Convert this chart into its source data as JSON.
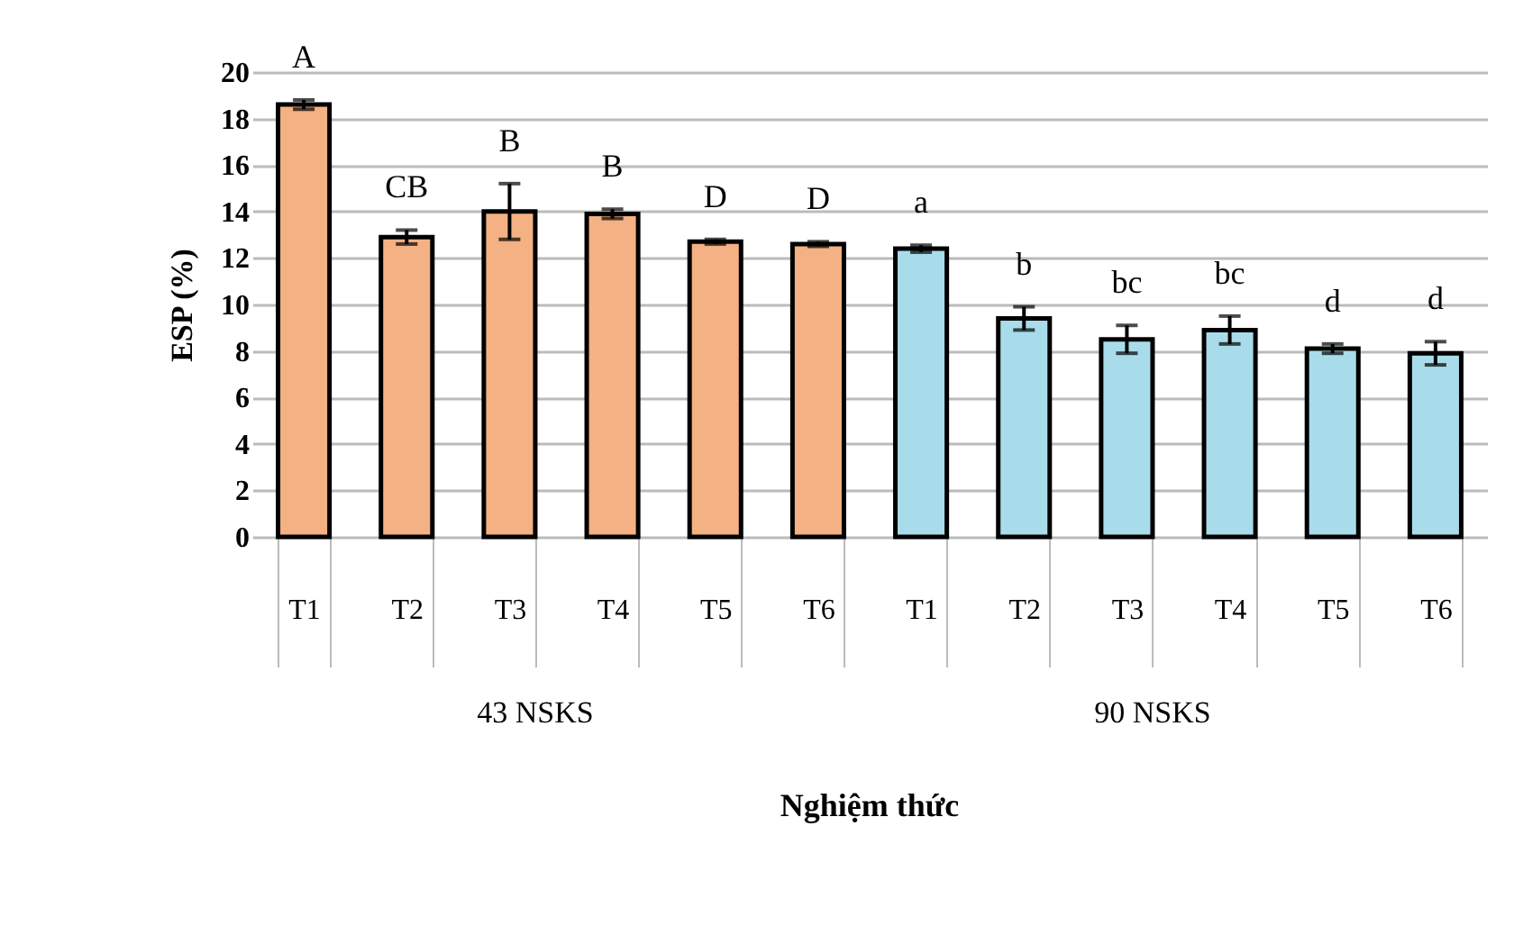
{
  "chart_data": {
    "type": "bar",
    "xlabel": "Nghiệm thức",
    "ylabel": "ESP (%)",
    "categories": [
      "T1",
      "T2",
      "T3",
      "T4",
      "T5",
      "T6",
      "T1",
      "T2",
      "T3",
      "T4",
      "T5",
      "T6"
    ],
    "series": [
      {
        "name": "43 NSKS",
        "color": "#f4b183",
        "values": [
          18.6,
          12.9,
          14.0,
          13.9,
          12.7,
          12.6,
          null,
          null,
          null,
          null,
          null,
          null
        ],
        "errors": [
          0.2,
          0.3,
          1.2,
          0.2,
          0.1,
          0.1,
          null,
          null,
          null,
          null,
          null,
          null
        ],
        "value_labels": [
          "A",
          "CB",
          "B",
          "B",
          "D",
          "D",
          null,
          null,
          null,
          null,
          null,
          null
        ]
      },
      {
        "name": "90 NSKS",
        "color": "#a8dcea",
        "values": [
          null,
          null,
          null,
          null,
          null,
          null,
          12.4,
          9.4,
          8.5,
          8.9,
          8.1,
          7.9
        ],
        "errors": [
          null,
          null,
          null,
          null,
          null,
          null,
          0.15,
          0.5,
          0.6,
          0.6,
          0.2,
          0.5
        ],
        "value_labels": [
          null,
          null,
          null,
          null,
          null,
          null,
          "a",
          "b",
          "bc",
          "bc",
          "d",
          "d"
        ]
      }
    ],
    "ylim": [
      0,
      20
    ],
    "yticks": [
      0,
      2,
      4,
      6,
      8,
      10,
      12,
      14,
      16,
      18,
      20
    ],
    "grid": "y"
  }
}
